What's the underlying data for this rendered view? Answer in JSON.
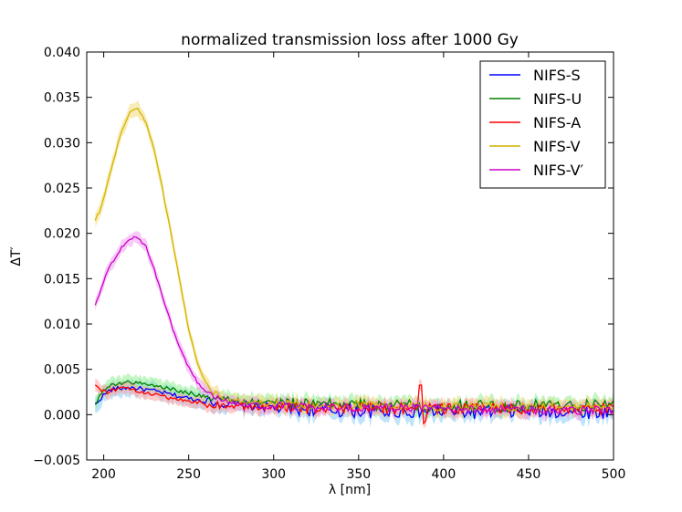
{
  "chart_data": {
    "type": "line",
    "title": "normalized transmission loss after 1000 Gy",
    "xlabel": "λ [nm]",
    "ylabel": "ΔT′",
    "xlim": [
      190,
      500
    ],
    "ylim": [
      -0.005,
      0.04
    ],
    "xticks": [
      200,
      250,
      300,
      350,
      400,
      450,
      500
    ],
    "xtick_labels": [
      "200",
      "250",
      "300",
      "350",
      "400",
      "450",
      "500"
    ],
    "yticks": [
      -0.005,
      0,
      0.005,
      0.01,
      0.015,
      0.02,
      0.025,
      0.03,
      0.035,
      0.04
    ],
    "ytick_labels": [
      "−0.005",
      "0.000",
      "0.005",
      "0.010",
      "0.015",
      "0.020",
      "0.025",
      "0.030",
      "0.035",
      "0.040"
    ],
    "legend_position": "top-right",
    "series": [
      {
        "name": "NIFS-S",
        "color": "#0000ff",
        "band_color": "#87cefa",
        "x": [
          195,
          198,
          202,
          205,
          210,
          215,
          220,
          230,
          240,
          250,
          260,
          270,
          280,
          300,
          320,
          350,
          380,
          400,
          420,
          450,
          480,
          500
        ],
        "values": [
          0.001,
          0.0018,
          0.0025,
          0.0028,
          0.0029,
          0.003,
          0.0029,
          0.0026,
          0.0022,
          0.0018,
          0.0015,
          0.0012,
          0.001,
          0.0008,
          0.0006,
          0.0004,
          0.0004,
          0.0003,
          0.0003,
          0.0004,
          0.0003,
          0.0004
        ],
        "noise": 0.0005,
        "band": 0.0009
      },
      {
        "name": "NIFS-U",
        "color": "#008000",
        "band_color": "#90ee90",
        "x": [
          195,
          198,
          202,
          205,
          210,
          215,
          220,
          230,
          240,
          250,
          260,
          270,
          280,
          300,
          320,
          350,
          380,
          400,
          420,
          450,
          480,
          500
        ],
        "values": [
          0.0012,
          0.0022,
          0.003,
          0.0033,
          0.0035,
          0.0036,
          0.0035,
          0.0032,
          0.0028,
          0.0024,
          0.002,
          0.0017,
          0.0015,
          0.0013,
          0.0012,
          0.0011,
          0.0011,
          0.001,
          0.001,
          0.001,
          0.001,
          0.0011
        ],
        "noise": 0.0004,
        "band": 0.0008
      },
      {
        "name": "NIFS-A",
        "color": "#ff0000",
        "band_color": "#ffa0a0",
        "x": [
          195,
          198,
          202,
          205,
          210,
          215,
          220,
          230,
          240,
          250,
          260,
          270,
          280,
          300,
          320,
          350,
          380,
          400,
          420,
          450,
          480,
          500
        ],
        "values": [
          0.0033,
          0.0028,
          0.0025,
          0.0027,
          0.0029,
          0.0028,
          0.0026,
          0.0022,
          0.0018,
          0.0015,
          0.0012,
          0.001,
          0.0009,
          0.0008,
          0.0007,
          0.0007,
          0.0007,
          0.0007,
          0.0007,
          0.0007,
          0.0006,
          0.0006
        ],
        "noise": 0.0004,
        "band": 0.0007
      },
      {
        "name": "NIFS-V",
        "color": "#d4b400",
        "band_color": "#f0dc78",
        "x": [
          195,
          198,
          200,
          205,
          210,
          215,
          220,
          225,
          230,
          235,
          240,
          245,
          250,
          255,
          260,
          265,
          270,
          275,
          280,
          290,
          300,
          320,
          350,
          400,
          450,
          500
        ],
        "values": [
          0.0215,
          0.0225,
          0.024,
          0.0275,
          0.031,
          0.0333,
          0.0337,
          0.0323,
          0.029,
          0.0245,
          0.0195,
          0.0145,
          0.0095,
          0.0058,
          0.0035,
          0.0024,
          0.0019,
          0.0016,
          0.0015,
          0.0013,
          0.0012,
          0.0011,
          0.001,
          0.0009,
          0.0008,
          0.0008
        ],
        "noise": 0.0003,
        "band": 0.0008
      },
      {
        "name": "NIFS-V′",
        "color": "#cc00cc",
        "band_color": "#f0a0f0",
        "x": [
          195,
          198,
          200,
          205,
          210,
          215,
          220,
          225,
          230,
          235,
          240,
          245,
          250,
          255,
          260,
          265,
          270,
          280,
          290,
          300,
          350,
          400,
          450,
          500
        ],
        "values": [
          0.0122,
          0.0135,
          0.0148,
          0.0168,
          0.0183,
          0.0194,
          0.0196,
          0.0185,
          0.0158,
          0.0128,
          0.0098,
          0.0072,
          0.0052,
          0.0036,
          0.0026,
          0.002,
          0.0016,
          0.0012,
          0.001,
          0.0009,
          0.0007,
          0.0007,
          0.0005,
          0.0005
        ],
        "noise": 0.0003,
        "band": 0.0007
      }
    ]
  }
}
